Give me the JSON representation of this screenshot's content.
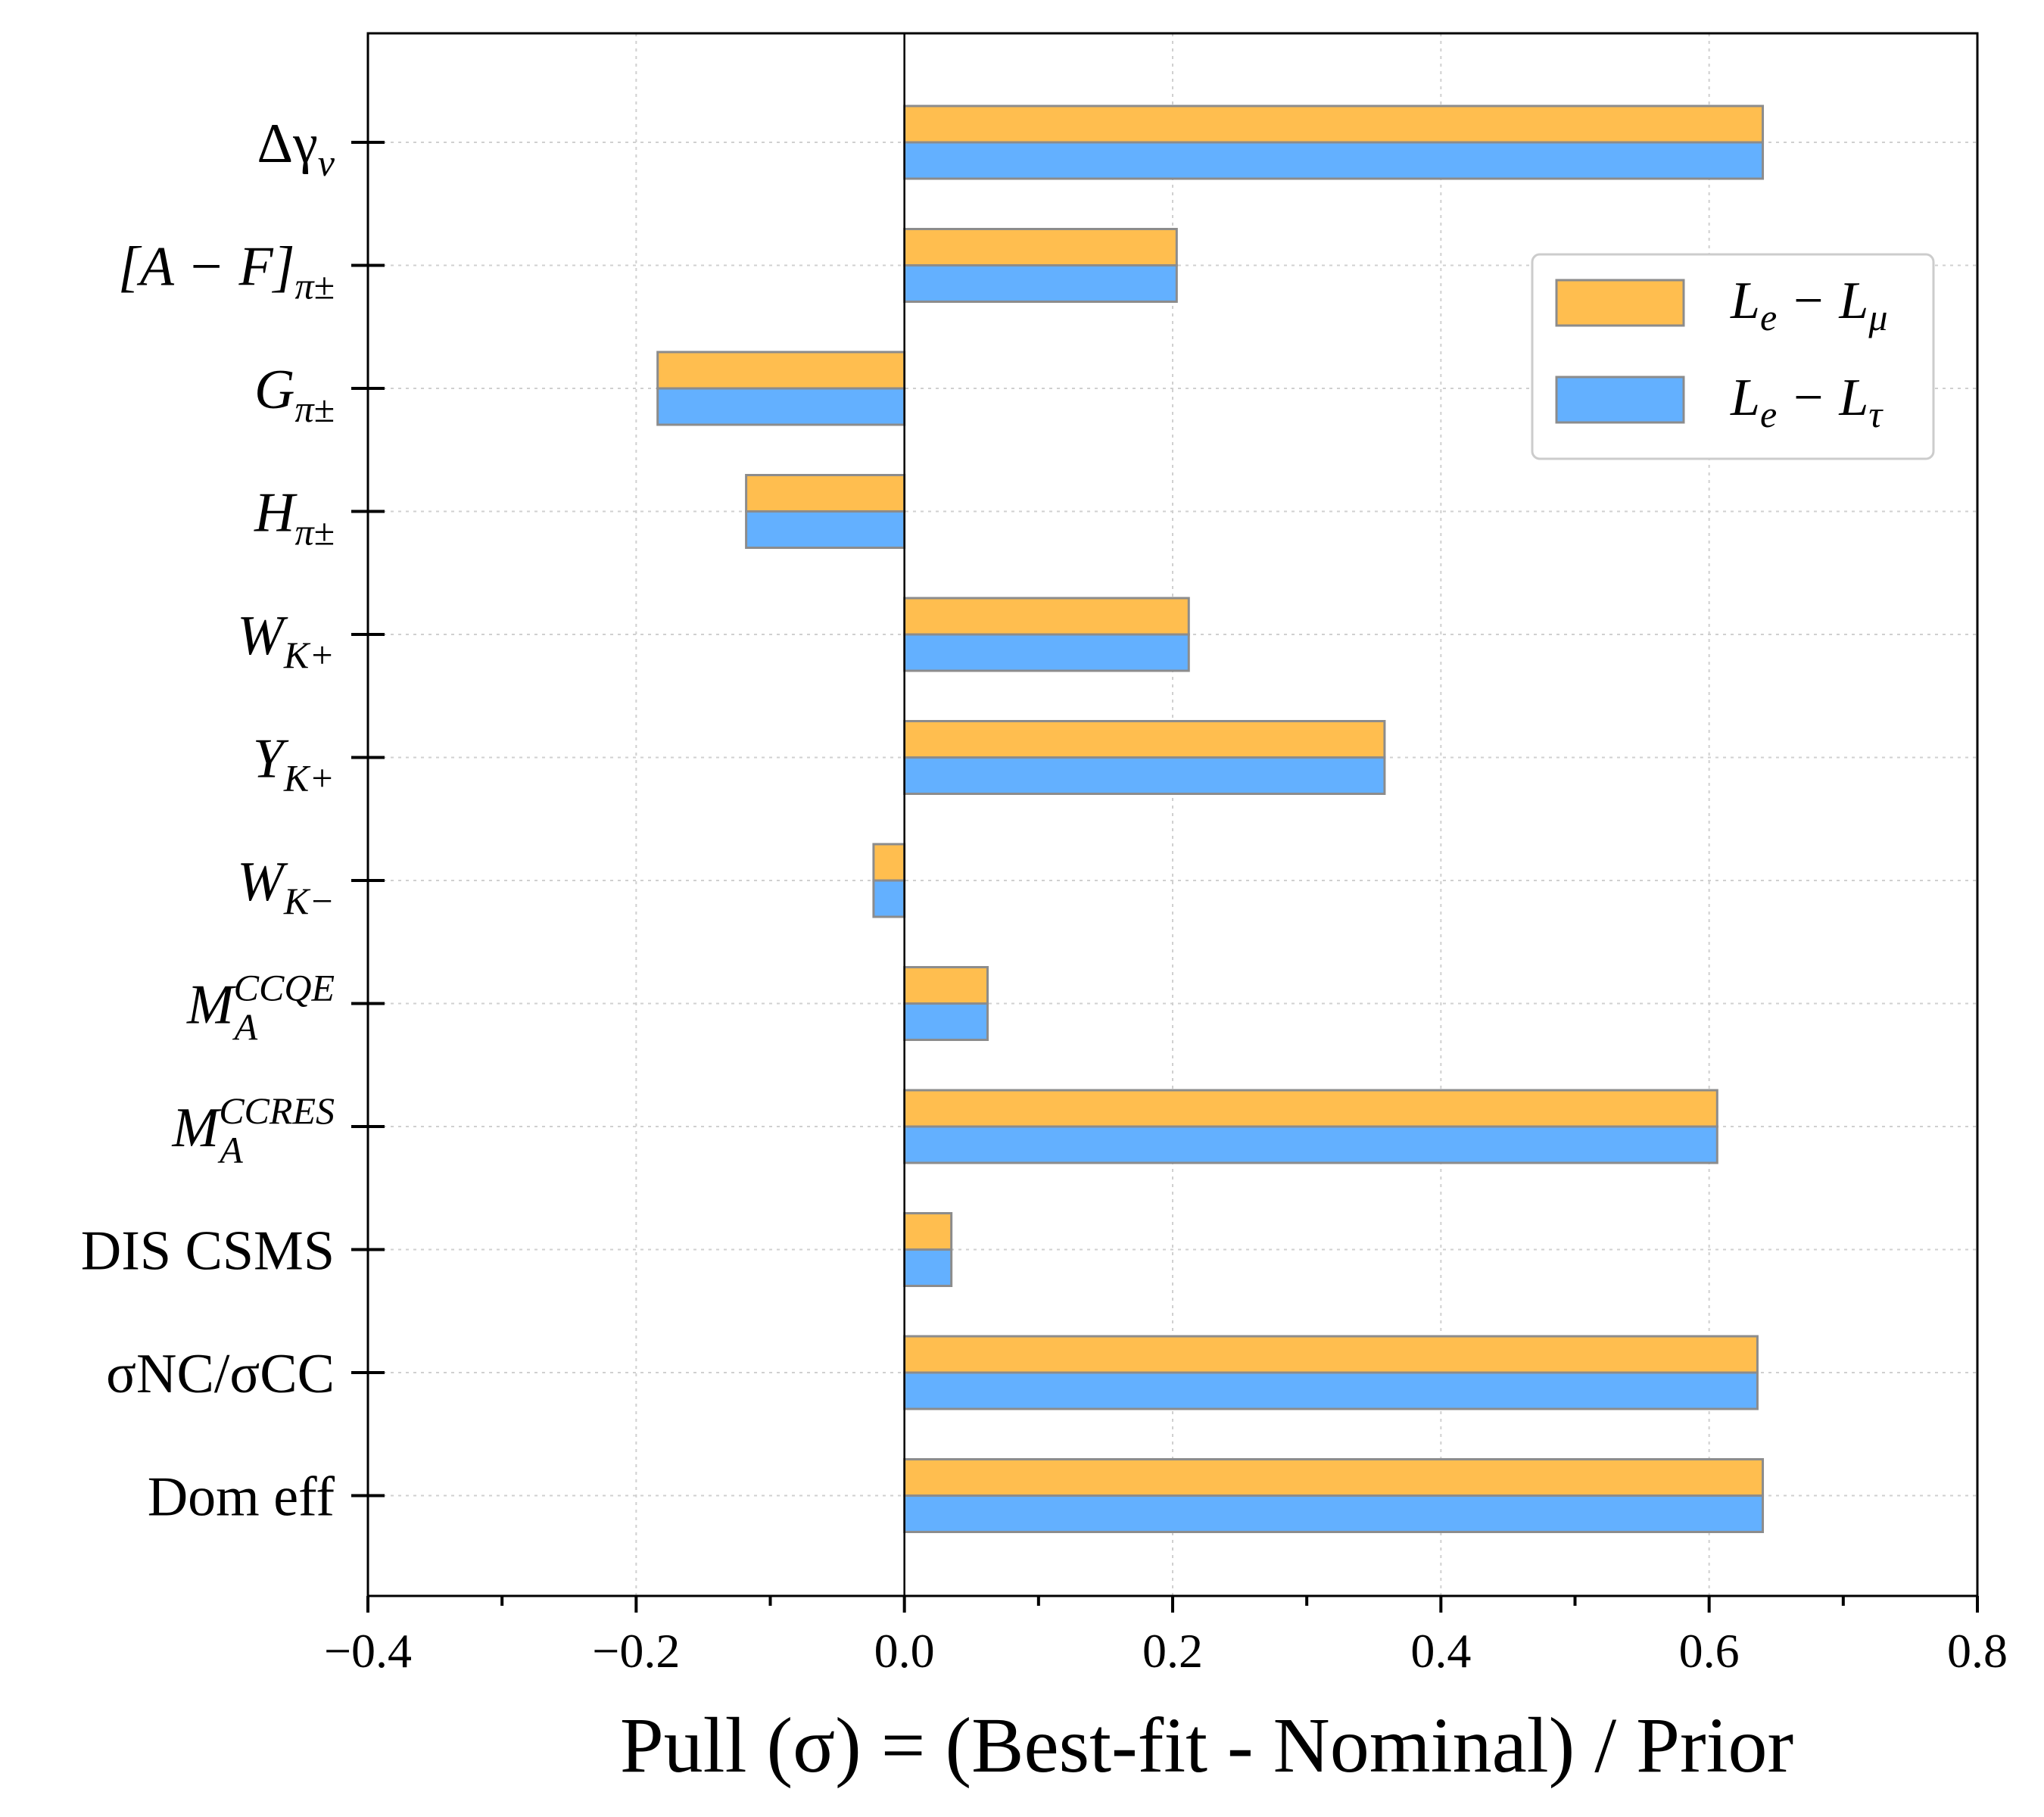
{
  "chart_data": {
    "type": "bar",
    "orientation": "horizontal",
    "title": "",
    "xlabel": "Pull (σ) = (Best-fit - Nominal) / Prior",
    "ylabel": "",
    "xlim": [
      -0.4,
      0.8
    ],
    "xticks": [
      -0.4,
      -0.2,
      0.0,
      0.2,
      0.4,
      0.6,
      0.8
    ],
    "xtick_labels": [
      "−0.4",
      "−0.2",
      "0.0",
      "0.2",
      "0.4",
      "0.6",
      "0.8"
    ],
    "grid": true,
    "legend_position": "upper-right",
    "categories": [
      {
        "base": "Δγ",
        "sub": "ν",
        "sup": ""
      },
      {
        "base": "[A − F]",
        "sub": "π±",
        "sup": ""
      },
      {
        "base": "G",
        "sub": "π±",
        "sup": ""
      },
      {
        "base": "H",
        "sub": "π±",
        "sup": ""
      },
      {
        "base": "W",
        "sub": "K+",
        "sup": ""
      },
      {
        "base": "Y",
        "sub": "K+",
        "sup": ""
      },
      {
        "base": "W",
        "sub": "K−",
        "sup": ""
      },
      {
        "base": "M",
        "sub": "A",
        "sup": "CCQE"
      },
      {
        "base": "M",
        "sub": "A",
        "sup": "CCRES"
      },
      {
        "base": "DIS CSMS",
        "sub": "",
        "sup": ""
      },
      {
        "base": "σNC/σCC",
        "sub": "",
        "sup": ""
      },
      {
        "base": "Dom eff",
        "sub": "",
        "sup": ""
      }
    ],
    "series": [
      {
        "name": "L_e − L_μ",
        "label_base": "L",
        "label_sub1": "e",
        "label_mid": " − L",
        "label_sub2": "μ",
        "color": "#FFBE4F",
        "values": [
          0.64,
          0.203,
          -0.184,
          -0.118,
          0.212,
          0.358,
          -0.023,
          0.062,
          0.606,
          0.035,
          0.636,
          0.64
        ]
      },
      {
        "name": "L_e − L_τ",
        "label_base": "L",
        "label_sub1": "e",
        "label_mid": " − L",
        "label_sub2": "τ",
        "color": "#63B0FF",
        "values": [
          0.64,
          0.203,
          -0.184,
          -0.118,
          0.212,
          0.358,
          -0.023,
          0.062,
          0.606,
          0.035,
          0.636,
          0.64
        ]
      }
    ]
  }
}
